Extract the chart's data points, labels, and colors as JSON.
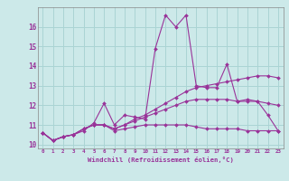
{
  "xlabel": "Windchill (Refroidissement éolien,°C)",
  "ylabel": "",
  "background_color": "#cce9e9",
  "grid_color": "#aad4d4",
  "line_color": "#993399",
  "xlim": [
    -0.5,
    23.5
  ],
  "ylim": [
    9.8,
    17.0
  ],
  "yticks": [
    10,
    11,
    12,
    13,
    14,
    15,
    16
  ],
  "xticks": [
    0,
    1,
    2,
    3,
    4,
    5,
    6,
    7,
    8,
    9,
    10,
    11,
    12,
    13,
    14,
    15,
    16,
    17,
    18,
    19,
    20,
    21,
    22,
    23
  ],
  "series": [
    {
      "x": [
        0,
        1,
        2,
        3,
        4,
        5,
        6,
        7,
        8,
        9,
        10,
        11,
        12,
        13,
        14,
        15,
        16,
        17,
        18,
        19,
        20,
        21,
        22,
        23
      ],
      "y": [
        10.6,
        10.2,
        10.4,
        10.5,
        10.7,
        11.1,
        12.1,
        11.0,
        11.5,
        11.4,
        11.3,
        14.9,
        16.6,
        16.0,
        16.6,
        13.0,
        12.9,
        12.9,
        14.1,
        12.2,
        12.3,
        12.2,
        11.5,
        10.7
      ]
    },
    {
      "x": [
        0,
        1,
        2,
        3,
        4,
        5,
        6,
        7,
        8,
        9,
        10,
        11,
        12,
        13,
        14,
        15,
        16,
        17,
        18,
        19,
        20,
        21,
        22,
        23
      ],
      "y": [
        10.6,
        10.2,
        10.4,
        10.5,
        10.8,
        11.0,
        11.0,
        10.8,
        11.0,
        11.3,
        11.5,
        11.8,
        12.1,
        12.4,
        12.7,
        12.9,
        13.0,
        13.1,
        13.2,
        13.3,
        13.4,
        13.5,
        13.5,
        13.4
      ]
    },
    {
      "x": [
        0,
        1,
        2,
        3,
        4,
        5,
        6,
        7,
        8,
        9,
        10,
        11,
        12,
        13,
        14,
        15,
        16,
        17,
        18,
        19,
        20,
        21,
        22,
        23
      ],
      "y": [
        10.6,
        10.2,
        10.4,
        10.5,
        10.8,
        11.0,
        11.0,
        10.8,
        11.0,
        11.2,
        11.4,
        11.6,
        11.8,
        12.0,
        12.2,
        12.3,
        12.3,
        12.3,
        12.3,
        12.2,
        12.2,
        12.2,
        12.1,
        12.0
      ]
    },
    {
      "x": [
        0,
        1,
        2,
        3,
        4,
        5,
        6,
        7,
        8,
        9,
        10,
        11,
        12,
        13,
        14,
        15,
        16,
        17,
        18,
        19,
        20,
        21,
        22,
        23
      ],
      "y": [
        10.6,
        10.2,
        10.4,
        10.5,
        10.8,
        11.0,
        11.0,
        10.7,
        10.8,
        10.9,
        11.0,
        11.0,
        11.0,
        11.0,
        11.0,
        10.9,
        10.8,
        10.8,
        10.8,
        10.8,
        10.7,
        10.7,
        10.7,
        10.7
      ]
    }
  ]
}
